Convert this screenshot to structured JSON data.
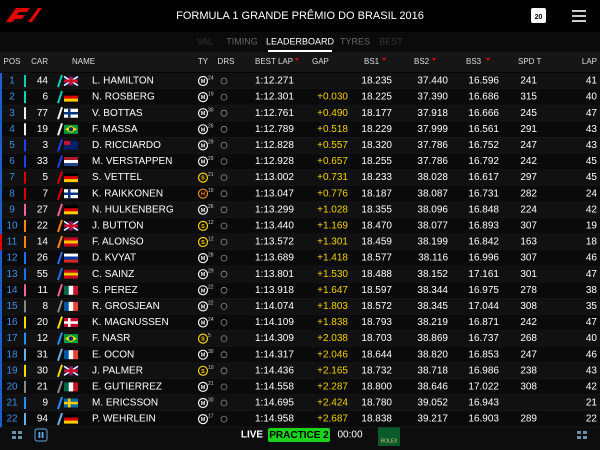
{
  "header": {
    "title": "FORMULA 1 GRANDE PRÊMIO DO BRASIL 2016",
    "day": "20"
  },
  "tabs": [
    "VAL",
    "TIMING",
    "LEADERBOARD",
    "TYRES",
    "BEST"
  ],
  "active_tab": 2,
  "columns": [
    "POS",
    "CAR",
    "NAME",
    "TY",
    "DRS",
    "BEST LAP",
    "GAP",
    "BS1",
    "BS2",
    "BS3",
    "SPD T",
    "LAP"
  ],
  "rows": [
    {
      "pos": "1",
      "car": "44",
      "name": "L. HAMILTON",
      "tyre": "M",
      "tyre_laps": "24",
      "best_lap": "1:12.271",
      "bs1": "18.235",
      "bs2": "37.440",
      "bs3": "16.596",
      "spd": "241",
      "lap": "41"
    },
    {
      "pos": "2",
      "car": "6",
      "name": "N. ROSBERG",
      "tyre": "M",
      "tyre_laps": "19",
      "best_lap": "1:12.301",
      "gap": "+0.030",
      "bs1": "18.225",
      "bs2": "37.390",
      "bs3": "16.686",
      "spd": "315",
      "lap": "40"
    },
    {
      "pos": "3",
      "car": "77",
      "name": "V. BOTTAS",
      "tyre": "M",
      "tyre_laps": "30",
      "best_lap": "1:12.761",
      "gap": "+0.490",
      "bs1": "18.177",
      "bs2": "37.918",
      "bs3": "16.666",
      "spd": "245",
      "lap": "47"
    },
    {
      "pos": "4",
      "car": "19",
      "name": "F. MASSA",
      "tyre": "M",
      "tyre_laps": "26",
      "best_lap": "1:12.789",
      "gap": "+0.518",
      "bs1": "18.229",
      "bs2": "37.999",
      "bs3": "16.561",
      "spd": "291",
      "lap": "43"
    },
    {
      "pos": "5",
      "car": "3",
      "name": "D. RICCIARDO",
      "tyre": "M",
      "tyre_laps": "29",
      "best_lap": "1:12.828",
      "gap": "+0.557",
      "bs1": "18.320",
      "bs2": "37.786",
      "bs3": "16.752",
      "spd": "247",
      "lap": "43"
    },
    {
      "pos": "6",
      "car": "33",
      "name": "M. VERSTAPPEN",
      "tyre": "M",
      "tyre_laps": "29",
      "best_lap": "1:12.928",
      "gap": "+0.657",
      "bs1": "18.255",
      "bs2": "37.786",
      "bs3": "16.792",
      "spd": "242",
      "lap": "45"
    },
    {
      "pos": "7",
      "car": "5",
      "name": "S. VETTEL",
      "tyre": "S",
      "tyre_laps": "21",
      "best_lap": "1:13.002",
      "gap": "+0.731",
      "bs1": "18.233",
      "bs2": "38.028",
      "bs3": "16.617",
      "spd": "297",
      "lap": "45"
    },
    {
      "pos": "8",
      "car": "7",
      "name": "K. RAIKKONEN",
      "tyre": "H",
      "tyre_laps": "15",
      "best_lap": "1:13.047",
      "gap": "+0.776",
      "bs1": "18.187",
      "bs2": "38.087",
      "bs3": "16.731",
      "spd": "282",
      "lap": "24"
    },
    {
      "pos": "9",
      "car": "27",
      "name": "N. HULKENBERG",
      "tyre": "M",
      "tyre_laps": "26",
      "best_lap": "1:13.299",
      "gap": "+1.028",
      "bs1": "18.355",
      "bs2": "38.096",
      "bs3": "16.848",
      "spd": "224",
      "lap": "42"
    },
    {
      "pos": "10",
      "car": "22",
      "name": "J. BUTTON",
      "tyre": "S",
      "tyre_laps": "12",
      "best_lap": "1:13.440",
      "gap": "+1.169",
      "bs1": "18.470",
      "bs2": "38.077",
      "bs3": "16.893",
      "spd": "307",
      "lap": "19"
    },
    {
      "pos": "11",
      "car": "14",
      "name": "F. ALONSO",
      "tyre": "S",
      "tyre_laps": "12",
      "best_lap": "1:13.572",
      "gap": "+1.301",
      "bs1": "18.459",
      "bs2": "38.199",
      "bs3": "16.842",
      "spd": "163",
      "lap": "18"
    },
    {
      "pos": "12",
      "car": "26",
      "name": "D. KVYAT",
      "tyre": "M",
      "tyre_laps": "28",
      "best_lap": "1:13.689",
      "gap": "+1.418",
      "bs1": "18.577",
      "bs2": "38.116",
      "bs3": "16.996",
      "spd": "307",
      "lap": "46"
    },
    {
      "pos": "13",
      "car": "55",
      "name": "C. SAINZ",
      "tyre": "M",
      "tyre_laps": "29",
      "best_lap": "1:13.801",
      "gap": "+1.530",
      "bs1": "18.488",
      "bs2": "38.152",
      "bs3": "17.161",
      "spd": "301",
      "lap": "47"
    },
    {
      "pos": "14",
      "car": "11",
      "name": "S. PEREZ",
      "tyre": "M",
      "tyre_laps": "22",
      "best_lap": "1:13.918",
      "gap": "+1.647",
      "bs1": "18.597",
      "bs2": "38.344",
      "bs3": "16.975",
      "spd": "278",
      "lap": "38"
    },
    {
      "pos": "15",
      "car": "8",
      "name": "R. GROSJEAN",
      "tyre": "M",
      "tyre_laps": "22",
      "best_lap": "1:14.074",
      "gap": "+1.803",
      "bs1": "18.572",
      "bs2": "38.345",
      "bs3": "17.044",
      "spd": "308",
      "lap": "35"
    },
    {
      "pos": "16",
      "car": "20",
      "name": "K. MAGNUSSEN",
      "tyre": "M",
      "tyre_laps": "24",
      "best_lap": "1:14.109",
      "gap": "+1.838",
      "bs1": "18.793",
      "bs2": "38.219",
      "bs3": "16.871",
      "spd": "242",
      "lap": "47"
    },
    {
      "pos": "17",
      "car": "12",
      "name": "F. NASR",
      "tyre": "S",
      "tyre_laps": "5",
      "best_lap": "1:14.309",
      "gap": "+2.038",
      "bs1": "18.703",
      "bs2": "38.869",
      "bs3": "16.737",
      "spd": "268",
      "lap": "40"
    },
    {
      "pos": "18",
      "car": "31",
      "name": "E. OCON",
      "tyre": "M",
      "tyre_laps": "30",
      "best_lap": "1:14.317",
      "gap": "+2.046",
      "bs1": "18.644",
      "bs2": "38.820",
      "bs3": "16.853",
      "spd": "247",
      "lap": "46"
    },
    {
      "pos": "19",
      "car": "30",
      "name": "J. PALMER",
      "tyre": "S",
      "tyre_laps": "10",
      "best_lap": "1:14.436",
      "gap": "+2.165",
      "bs1": "18.732",
      "bs2": "38.718",
      "bs3": "16.986",
      "spd": "238",
      "lap": "43"
    },
    {
      "pos": "20",
      "car": "21",
      "name": "E. GUTIERREZ",
      "tyre": "M",
      "tyre_laps": "21",
      "best_lap": "1:14.558",
      "gap": "+2.287",
      "bs1": "18.800",
      "bs2": "38.646",
      "bs3": "17.022",
      "spd": "308",
      "lap": "42"
    },
    {
      "pos": "21",
      "car": "9",
      "name": "M. ERICSSON",
      "tyre": "M",
      "tyre_laps": "30",
      "best_lap": "1:14.695",
      "gap": "+2.424",
      "bs1": "18.780",
      "bs2": "39.052",
      "bs3": "16.943",
      "lap": "21"
    },
    {
      "pos": "22",
      "car": "94",
      "name": "P. WEHRLEIN",
      "tyre": "M",
      "tyre_laps": "17",
      "best_lap": "1:14.958",
      "gap": "+2.687",
      "bs1": "18.838",
      "bs2": "39.217",
      "bs3": "16.903",
      "spd": "289",
      "lap": "22"
    }
  ],
  "footer": {
    "status": "LIVE",
    "session": "PRACTICE 2",
    "clock": "00:00",
    "sponsor": "ROLEX"
  }
}
